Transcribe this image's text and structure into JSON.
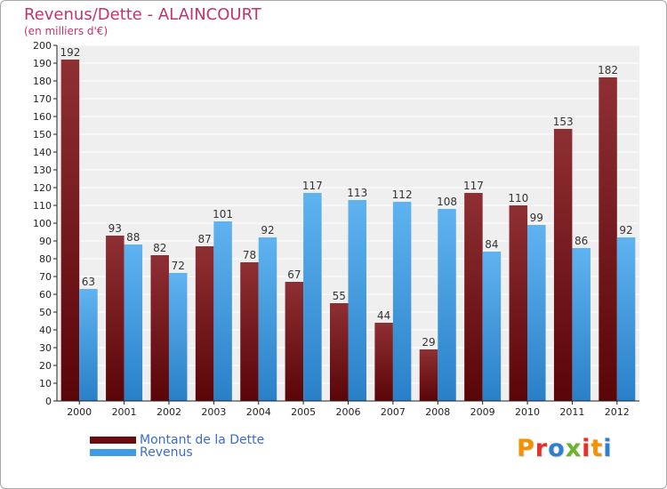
{
  "chart_data": {
    "type": "bar",
    "title": "Revenus/Dette - ALAINCOURT",
    "subtitle": "(en milliers d'€)",
    "xlabel": "",
    "ylabel": "",
    "ylim": [
      0,
      200
    ],
    "ytick_step": 10,
    "grid": true,
    "legend_position": "bottom-left",
    "categories": [
      "2000",
      "2001",
      "2002",
      "2003",
      "2004",
      "2005",
      "2006",
      "2007",
      "2008",
      "2009",
      "2010",
      "2011",
      "2012"
    ],
    "series": [
      {
        "name": "Montant de la Dette",
        "color": "#7b1a1e",
        "values": [
          192,
          93,
          82,
          87,
          78,
          67,
          55,
          44,
          29,
          117,
          110,
          153,
          182
        ]
      },
      {
        "name": "Revenus",
        "color": "#4aa3e6",
        "values": [
          63,
          88,
          72,
          101,
          92,
          117,
          113,
          112,
          108,
          84,
          99,
          86,
          92
        ]
      }
    ]
  },
  "logo": {
    "text": "Proxiti",
    "letters": [
      {
        "ch": "P",
        "color": "#f39200"
      },
      {
        "ch": "r",
        "color": "#e8302a"
      },
      {
        "ch": "o",
        "color": "#2d7fd0"
      },
      {
        "ch": "x",
        "color": "#6ab42d"
      },
      {
        "ch": "i",
        "color": "#e8302a"
      },
      {
        "ch": "t",
        "color": "#f39200"
      },
      {
        "ch": "i",
        "color": "#2d7fd0"
      }
    ]
  }
}
